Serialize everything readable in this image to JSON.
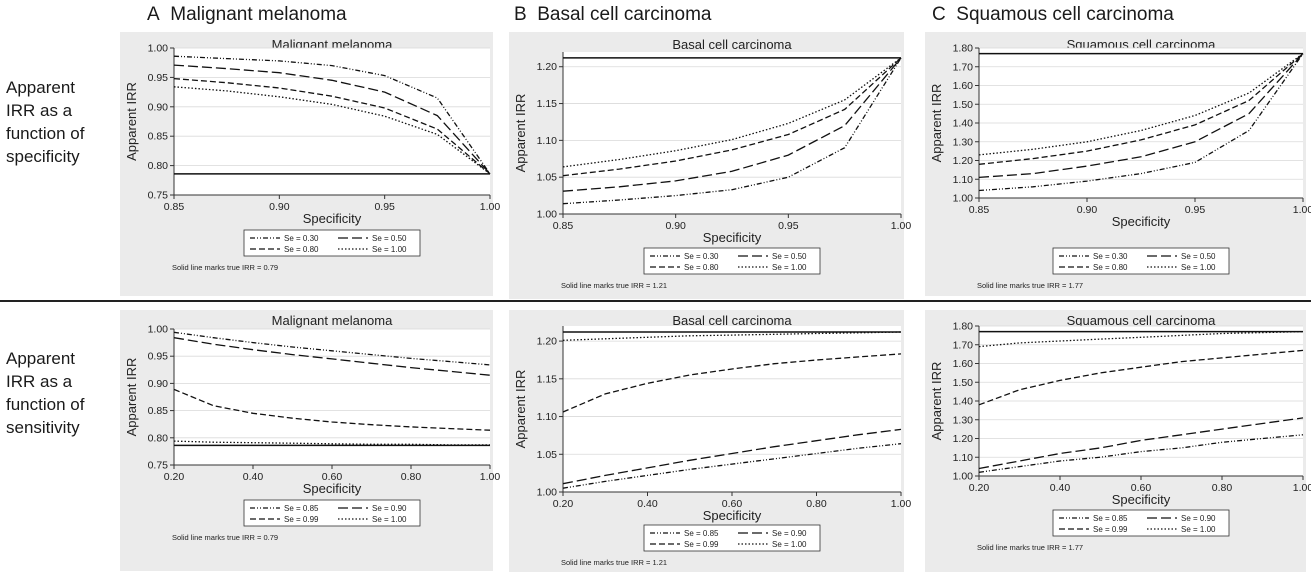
{
  "headers": [
    {
      "letter": "A",
      "text": "Malignant melanoma"
    },
    {
      "letter": "B",
      "text": "Basal cell carcinoma"
    },
    {
      "letter": "C",
      "text": "Squamous cell carcinoma"
    }
  ],
  "row_labels": [
    [
      "Apparent",
      "IRR as a",
      "function of",
      "specificity"
    ],
    [
      "Apparent",
      "IRR as a",
      "function of",
      "sensitivity"
    ]
  ],
  "chart_data": [
    {
      "type": "line",
      "title": "Malignant melanoma",
      "xlabel": "Specificity",
      "ylabel": "Apparent IRR",
      "xlim": [
        0.85,
        1.0
      ],
      "ylim": [
        0.75,
        1.0
      ],
      "xticks": [
        0.85,
        0.9,
        0.95,
        1.0
      ],
      "xticklabels": [
        "0.85",
        "0.90",
        "0.95",
        "1.00"
      ],
      "yticks": [
        0.75,
        0.8,
        0.85,
        0.9,
        0.95,
        1.0
      ],
      "yticklabels": [
        "0.75",
        "0.80",
        "0.85",
        "0.90",
        "0.95",
        "1.00"
      ],
      "reference_line": 0.786,
      "note": "Solid line marks true IRR = 0.79",
      "x": [
        0.85,
        0.875,
        0.9,
        0.925,
        0.95,
        0.975,
        1.0
      ],
      "series": [
        {
          "name": "Se = 0.30",
          "dash": "dashdot",
          "values": [
            0.986,
            0.982,
            0.978,
            0.97,
            0.953,
            0.915,
            0.786
          ]
        },
        {
          "name": "Se = 0.50",
          "dash": "longdash",
          "values": [
            0.971,
            0.965,
            0.958,
            0.945,
            0.925,
            0.885,
            0.786
          ]
        },
        {
          "name": "Se = 0.80",
          "dash": "dash",
          "values": [
            0.948,
            0.941,
            0.932,
            0.918,
            0.898,
            0.862,
            0.786
          ]
        },
        {
          "name": "Se = 1.00",
          "dash": "dot",
          "values": [
            0.934,
            0.927,
            0.917,
            0.904,
            0.884,
            0.853,
            0.786
          ]
        }
      ]
    },
    {
      "type": "line",
      "title": "Basal cell carcinoma",
      "xlabel": "Specificity",
      "ylabel": "Apparent IRR",
      "xlim": [
        0.85,
        1.0
      ],
      "ylim": [
        1.0,
        1.22
      ],
      "xticks": [
        0.85,
        0.9,
        0.95,
        1.0
      ],
      "xticklabels": [
        "0.85",
        "0.90",
        "0.95",
        "1.00"
      ],
      "yticks": [
        1.0,
        1.05,
        1.1,
        1.15,
        1.2
      ],
      "yticklabels": [
        "1.00",
        "1.05",
        "1.10",
        "1.15",
        "1.20"
      ],
      "reference_line": 1.212,
      "note": "Solid line marks true IRR = 1.21",
      "x": [
        0.85,
        0.875,
        0.9,
        0.925,
        0.95,
        0.975,
        1.0
      ],
      "series": [
        {
          "name": "Se = 0.30",
          "dash": "dashdot",
          "values": [
            1.014,
            1.019,
            1.025,
            1.033,
            1.05,
            1.09,
            1.212
          ]
        },
        {
          "name": "Se = 0.50",
          "dash": "longdash",
          "values": [
            1.031,
            1.037,
            1.045,
            1.058,
            1.08,
            1.12,
            1.212
          ]
        },
        {
          "name": "Se = 0.80",
          "dash": "dash",
          "values": [
            1.052,
            1.061,
            1.072,
            1.087,
            1.108,
            1.142,
            1.212
          ]
        },
        {
          "name": "Se = 1.00",
          "dash": "dot",
          "values": [
            1.064,
            1.074,
            1.086,
            1.101,
            1.123,
            1.155,
            1.212
          ]
        }
      ]
    },
    {
      "type": "line",
      "title": "Squamous cell carcinoma",
      "xlabel": "Specificity",
      "ylabel": "Apparent IRR",
      "xlim": [
        0.85,
        1.0
      ],
      "ylim": [
        1.0,
        1.8
      ],
      "xticks": [
        0.85,
        0.9,
        0.95,
        1.0
      ],
      "xticklabels": [
        "0.85",
        "0.90",
        "0.95",
        "1.00"
      ],
      "yticks": [
        1.0,
        1.1,
        1.2,
        1.3,
        1.4,
        1.5,
        1.6,
        1.7,
        1.8
      ],
      "yticklabels": [
        "1.00",
        "1.10",
        "1.20",
        "1.30",
        "1.40",
        "1.50",
        "1.60",
        "1.70",
        "1.80"
      ],
      "reference_line": 1.77,
      "note": "Solid line marks true IRR = 1.77",
      "x": [
        0.85,
        0.875,
        0.9,
        0.925,
        0.95,
        0.975,
        1.0
      ],
      "series": [
        {
          "name": "Se = 0.30",
          "dash": "dashdot",
          "values": [
            1.04,
            1.06,
            1.09,
            1.13,
            1.19,
            1.36,
            1.77
          ]
        },
        {
          "name": "Se = 0.50",
          "dash": "longdash",
          "values": [
            1.11,
            1.13,
            1.17,
            1.22,
            1.3,
            1.45,
            1.77
          ]
        },
        {
          "name": "Se = 0.80",
          "dash": "dash",
          "values": [
            1.18,
            1.21,
            1.25,
            1.31,
            1.39,
            1.52,
            1.77
          ]
        },
        {
          "name": "Se = 1.00",
          "dash": "dot",
          "values": [
            1.23,
            1.26,
            1.3,
            1.36,
            1.44,
            1.56,
            1.77
          ]
        }
      ]
    },
    {
      "type": "line",
      "title": "Malignant melanoma",
      "xlabel": "Specificity",
      "ylabel": "Apparent IRR",
      "xlim": [
        0.2,
        1.0
      ],
      "ylim": [
        0.75,
        1.0
      ],
      "xticks": [
        0.2,
        0.4,
        0.6,
        0.8,
        1.0
      ],
      "xticklabels": [
        "0.20",
        "0.40",
        "0.60",
        "0.80",
        "1.00"
      ],
      "yticks": [
        0.75,
        0.8,
        0.85,
        0.9,
        0.95,
        1.0
      ],
      "yticklabels": [
        "0.75",
        "0.80",
        "0.85",
        "0.90",
        "0.95",
        "1.00"
      ],
      "reference_line": 0.786,
      "note": "Solid line marks true IRR = 0.79",
      "x": [
        0.2,
        0.3,
        0.4,
        0.5,
        0.6,
        0.7,
        0.8,
        0.9,
        1.0
      ],
      "series": [
        {
          "name": "Se = 0.85",
          "dash": "dashdot",
          "values": [
            0.994,
            0.984,
            0.975,
            0.967,
            0.96,
            0.953,
            0.946,
            0.94,
            0.934
          ]
        },
        {
          "name": "Se = 0.90",
          "dash": "longdash",
          "values": [
            0.984,
            0.972,
            0.962,
            0.953,
            0.945,
            0.937,
            0.929,
            0.922,
            0.915
          ]
        },
        {
          "name": "Se = 0.99",
          "dash": "dash",
          "values": [
            0.889,
            0.859,
            0.845,
            0.836,
            0.829,
            0.824,
            0.82,
            0.817,
            0.814
          ]
        },
        {
          "name": "Se = 1.00",
          "dash": "dot",
          "values": [
            0.794,
            0.792,
            0.791,
            0.79,
            0.789,
            0.788,
            0.788,
            0.787,
            0.787
          ]
        }
      ]
    },
    {
      "type": "line",
      "title": "Basal cell carcinoma",
      "xlabel": "Specificity",
      "ylabel": "Apparent IRR",
      "xlim": [
        0.2,
        1.0
      ],
      "ylim": [
        1.0,
        1.22
      ],
      "xticks": [
        0.2,
        0.4,
        0.6,
        0.8,
        1.0
      ],
      "xticklabels": [
        "0.20",
        "0.40",
        "0.60",
        "0.80",
        "1.00"
      ],
      "yticks": [
        1.0,
        1.05,
        1.1,
        1.15,
        1.2
      ],
      "yticklabels": [
        "1.00",
        "1.05",
        "1.10",
        "1.15",
        "1.20"
      ],
      "reference_line": 1.212,
      "note": "Solid line marks true IRR = 1.21",
      "x": [
        0.2,
        0.3,
        0.4,
        0.5,
        0.6,
        0.7,
        0.8,
        0.9,
        1.0
      ],
      "series": [
        {
          "name": "Se = 0.85",
          "dash": "dashdot",
          "values": [
            1.005,
            1.014,
            1.022,
            1.03,
            1.037,
            1.044,
            1.051,
            1.058,
            1.064
          ]
        },
        {
          "name": "Se = 0.90",
          "dash": "longdash",
          "values": [
            1.011,
            1.022,
            1.032,
            1.042,
            1.051,
            1.06,
            1.068,
            1.076,
            1.083
          ]
        },
        {
          "name": "Se = 0.99",
          "dash": "dash",
          "values": [
            1.106,
            1.13,
            1.144,
            1.155,
            1.163,
            1.17,
            1.175,
            1.179,
            1.183
          ]
        },
        {
          "name": "Se = 1.00",
          "dash": "dot",
          "values": [
            1.201,
            1.203,
            1.205,
            1.207,
            1.208,
            1.209,
            1.21,
            1.211,
            1.212
          ]
        }
      ]
    },
    {
      "type": "line",
      "title": "Squamous cell carcinoma",
      "xlabel": "Specificity",
      "ylabel": "Apparent IRR",
      "xlim": [
        0.2,
        1.0
      ],
      "ylim": [
        1.0,
        1.8
      ],
      "xticks": [
        0.2,
        0.4,
        0.6,
        0.8,
        1.0
      ],
      "xticklabels": [
        "0.20",
        "0.40",
        "0.60",
        "0.80",
        "1.00"
      ],
      "yticks": [
        1.0,
        1.1,
        1.2,
        1.3,
        1.4,
        1.5,
        1.6,
        1.7,
        1.8
      ],
      "yticklabels": [
        "1.00",
        "1.10",
        "1.20",
        "1.30",
        "1.40",
        "1.50",
        "1.60",
        "1.70",
        "1.80"
      ],
      "reference_line": 1.77,
      "note": "Solid line marks true IRR = 1.77",
      "x": [
        0.2,
        0.3,
        0.4,
        0.5,
        0.6,
        0.7,
        0.8,
        0.9,
        1.0
      ],
      "series": [
        {
          "name": "Se = 0.85",
          "dash": "dashdot",
          "values": [
            1.02,
            1.05,
            1.08,
            1.1,
            1.13,
            1.15,
            1.18,
            1.2,
            1.22
          ]
        },
        {
          "name": "Se = 0.90",
          "dash": "longdash",
          "values": [
            1.04,
            1.08,
            1.12,
            1.15,
            1.19,
            1.22,
            1.25,
            1.28,
            1.31
          ]
        },
        {
          "name": "Se = 0.99",
          "dash": "dash",
          "values": [
            1.38,
            1.46,
            1.51,
            1.55,
            1.58,
            1.61,
            1.63,
            1.65,
            1.67
          ]
        },
        {
          "name": "Se = 1.00",
          "dash": "dot",
          "values": [
            1.69,
            1.71,
            1.72,
            1.73,
            1.74,
            1.75,
            1.76,
            1.765,
            1.77
          ]
        }
      ]
    }
  ]
}
